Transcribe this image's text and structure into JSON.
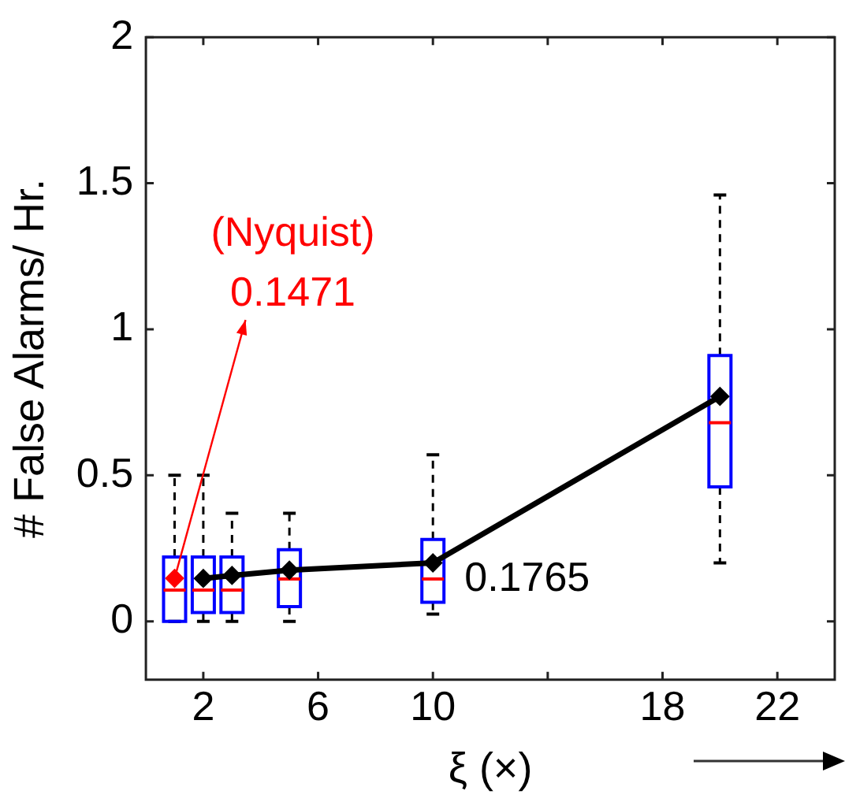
{
  "chart_data": {
    "type": "box",
    "xlabel": "ξ (×)",
    "ylabel": "# False Alarms/ Hr.",
    "x": [
      1,
      2,
      3,
      5,
      10,
      20
    ],
    "color": "#0000ff",
    "boxes": [
      {
        "low": 0,
        "q1": 0,
        "median": 0.107,
        "q3": 0.22,
        "high": 0.5
      },
      {
        "low": 0,
        "q1": 0.03,
        "median": 0.107,
        "q3": 0.22,
        "high": 0.5
      },
      {
        "low": 0,
        "q1": 0.03,
        "median": 0.107,
        "q3": 0.22,
        "high": 0.37
      },
      {
        "low": 0,
        "q1": 0.05,
        "median": 0.145,
        "q3": 0.245,
        "high": 0.37
      },
      {
        "low": 0.025,
        "q1": 0.065,
        "median": 0.145,
        "q3": 0.28,
        "high": 0.57
      },
      {
        "low": 0.2,
        "q1": 0.46,
        "median": 0.68,
        "q3": 0.91,
        "high": 1.46
      }
    ],
    "series": [
      {
        "type": "line",
        "x": [
          2,
          3,
          5,
          10,
          20
        ],
        "values": [
          0.147,
          0.157,
          0.175,
          0.2,
          0.77
        ],
        "color": "#000000",
        "marker": "diamond"
      },
      {
        "type": "scatter",
        "x": [
          1
        ],
        "values": [
          0.1471
        ],
        "color": "#ff0000",
        "marker": "diamond"
      }
    ],
    "xlim": [
      0,
      24
    ],
    "xticks": [
      2,
      6,
      10,
      {
        "value": 14,
        "label": null
      },
      18,
      22
    ],
    "ylim": [
      -0.2,
      2
    ],
    "yticks": [
      0,
      0.5,
      1,
      1.5,
      2
    ],
    "grid": false,
    "legend": false,
    "annotations": [
      "(Nyquist)",
      {
        "text": "0.1471",
        "x": 1,
        "y": 0.1471
      },
      {
        "text": "0.1765",
        "x": 10,
        "y": 0.1765
      }
    ]
  }
}
